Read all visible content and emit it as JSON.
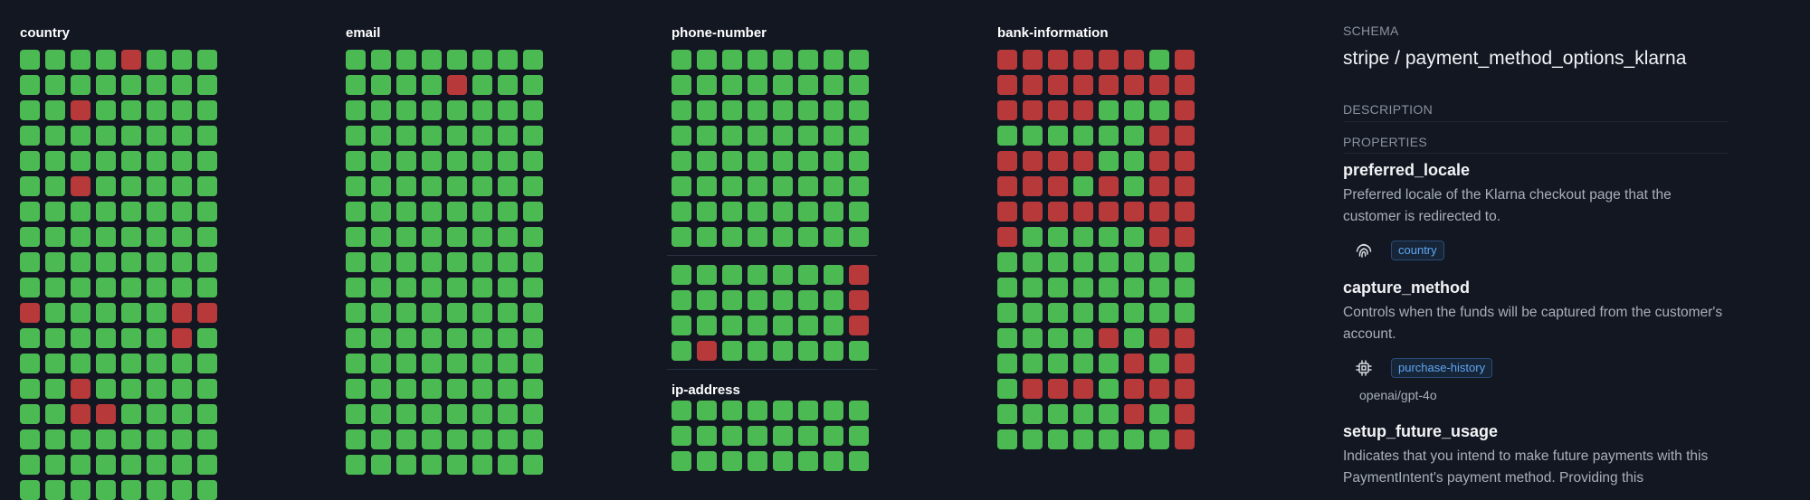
{
  "colors": {
    "good": "#4cba53",
    "bad": "#b8393a",
    "background": "#121722",
    "tag_text": "#5ea6f2"
  },
  "columns": [
    {
      "title": "country",
      "sections": [
        {
          "rows": [
            "GGGGRGGG",
            "GGGGGGGG",
            "GGRGGGGG",
            "GGGGGGGG",
            "GGGGGGGG",
            "GGRGGGGG",
            "GGGGGGGG",
            "GGGGGGGG",
            "GGGGGGGG",
            "GGGGGGGG",
            "RGGGGGRR",
            "GGGGGGRG",
            "GGGGGGGG",
            "GGRGGGGG",
            "GGRRGGGG",
            "GGGGGGGG",
            "GGGGGGGG",
            "GGGGGGGG"
          ]
        }
      ]
    },
    {
      "title": "email",
      "sections": [
        {
          "rows": [
            "GGGGGGGG",
            "GGGGRGGG",
            "GGGGGGGG",
            "GGGGGGGG",
            "GGGGGGGG",
            "GGGGGGGG",
            "GGGGGGGG",
            "GGGGGGGG",
            "GGGGGGGG",
            "GGGGGGGG",
            "GGGGGGGG",
            "GGGGGGGG",
            "GGGGGGGG",
            "GGGGGGGG",
            "GGGGGGGG",
            "GGGGGGGG",
            "GGGGGGGG"
          ]
        }
      ]
    },
    {
      "title": "phone-number",
      "sections": [
        {
          "rows": [
            "GGGGGGGG",
            "GGGGGGGG",
            "GGGGGGGG",
            "GGGGGGGG",
            "GGGGGGGG",
            "GGGGGGGG",
            "GGGGGGGG",
            "GGGGGGGG"
          ]
        },
        {
          "rows": [
            "GGGGGGGR",
            "GGGGGGGR",
            "GGGGGGGR",
            "GRGGGGGG"
          ]
        },
        {
          "title": "ip-address",
          "rows": [
            "GGGGGGGG",
            "GGGGGGGG",
            "GGGGGGGG"
          ]
        }
      ]
    },
    {
      "title": "bank-information",
      "sections": [
        {
          "rows": [
            "RRRRRRGR",
            "RRRRRRRR",
            "RRRRGGGR",
            "GGGGGGRR",
            "RRRRGGRR",
            "RRRGRGRR",
            "RRRRRRRR",
            "RGGGGGRR",
            "GGGGGGGG",
            "GGGGGGGG",
            "GGGGGGGG",
            "GGGGRGRR",
            "GGGGGRGR",
            "GRRRGRRR",
            "GGGGGRGR",
            "GGGGGGGR"
          ]
        }
      ]
    }
  ],
  "panel": {
    "schema_label": "SCHEMA",
    "schema_title": "stripe / payment_method_options_klarna",
    "description_label": "DESCRIPTION",
    "properties_label": "PROPERTIES",
    "properties": [
      {
        "name": "preferred_locale",
        "description": "Preferred locale of the Klarna checkout page that the customer is redirected to.",
        "icon": "fingerprint-icon",
        "tag": "country",
        "model": ""
      },
      {
        "name": "capture_method",
        "description": "Controls when the funds will be captured from the customer's account.",
        "icon": "chip-icon",
        "tag": "purchase-history",
        "model": "openai/gpt-4o"
      },
      {
        "name": "setup_future_usage",
        "description": "Indicates that you intend to make future payments with this PaymentIntent's payment method. Providing this",
        "icon": "",
        "tag": "",
        "model": ""
      }
    ]
  }
}
